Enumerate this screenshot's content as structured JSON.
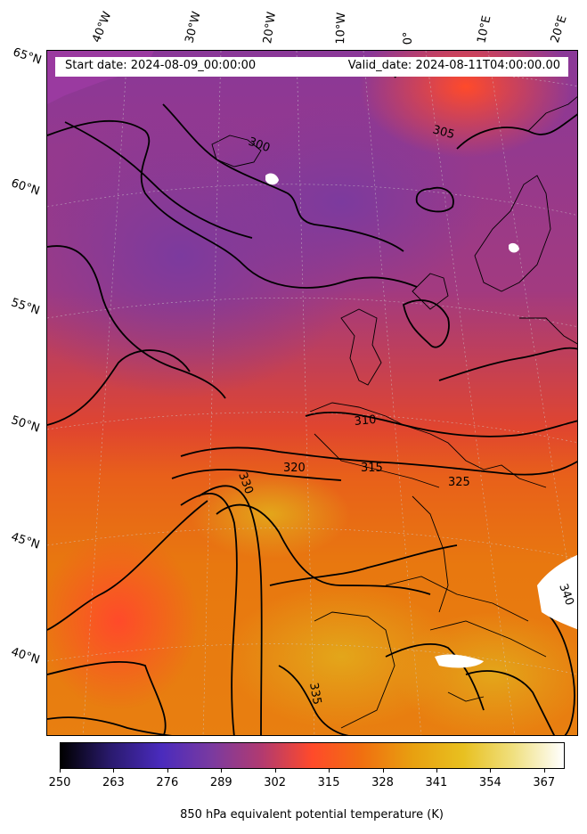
{
  "map": {
    "header": {
      "start_date": "Start date: 2024-08-09_00:00:00",
      "valid_date": "Valid_date: 2024-08-11T04:00:00.00"
    },
    "longitude_labels": [
      "40°W",
      "30°W",
      "20°W",
      "10°W",
      "0°",
      "10°E",
      "20°E"
    ],
    "latitude_labels": [
      "65°N",
      "60°N",
      "55°N",
      "50°N",
      "45°N",
      "40°N"
    ],
    "contour_labels": [
      "300",
      "305",
      "310",
      "315",
      "320",
      "325",
      "330",
      "335",
      "340"
    ],
    "colorbar": {
      "title": "850 hPa equivalent potential temperature (K)",
      "ticks": [
        "250",
        "263",
        "276",
        "289",
        "302",
        "315",
        "328",
        "341",
        "354",
        "367"
      ],
      "range": [
        250,
        372
      ],
      "colors": [
        "#000000",
        "#2a1a6e",
        "#4a2bbd",
        "#7a3aa0",
        "#b23a70",
        "#ff4a2a",
        "#f07010",
        "#e8a010",
        "#e8c020",
        "#f0e080",
        "#ffffff"
      ]
    }
  }
}
